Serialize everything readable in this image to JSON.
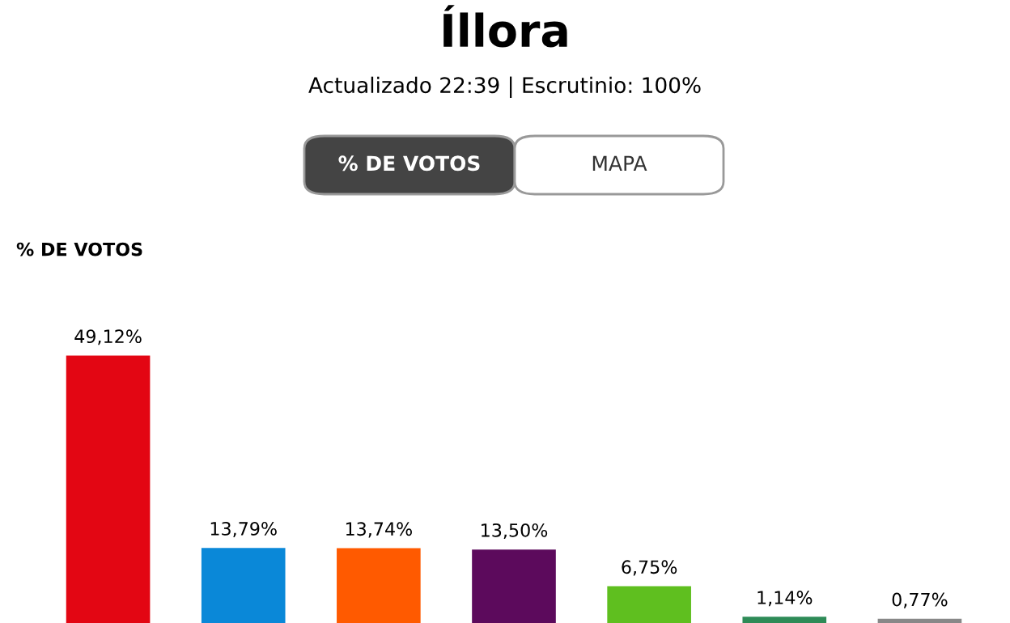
{
  "chart_data": {
    "type": "bar",
    "title": "Íllora",
    "subtitle": "Actualizado 22:39 | Escrutinio: 100%",
    "annotations": [
      "% DE VOTOS",
      "MAPA",
      "% DE VOTOS"
    ],
    "categories": [
      null,
      null,
      null,
      null,
      null,
      null,
      null
    ],
    "values": [
      49.12,
      13.79,
      13.74,
      13.5,
      6.75,
      1.14,
      0.77
    ],
    "colors": [
      "#e30613",
      "#0a88d8",
      "#ff5a00",
      "#5c0a5c",
      "#5fbf1f",
      "#2e8b57",
      "#888888"
    ],
    "value_labels": [
      "49,12%",
      "13,79%",
      "13,74%",
      "13,50%",
      "6,75%",
      "1,14%",
      "0,77%"
    ],
    "grid": false,
    "legend": false
  }
}
